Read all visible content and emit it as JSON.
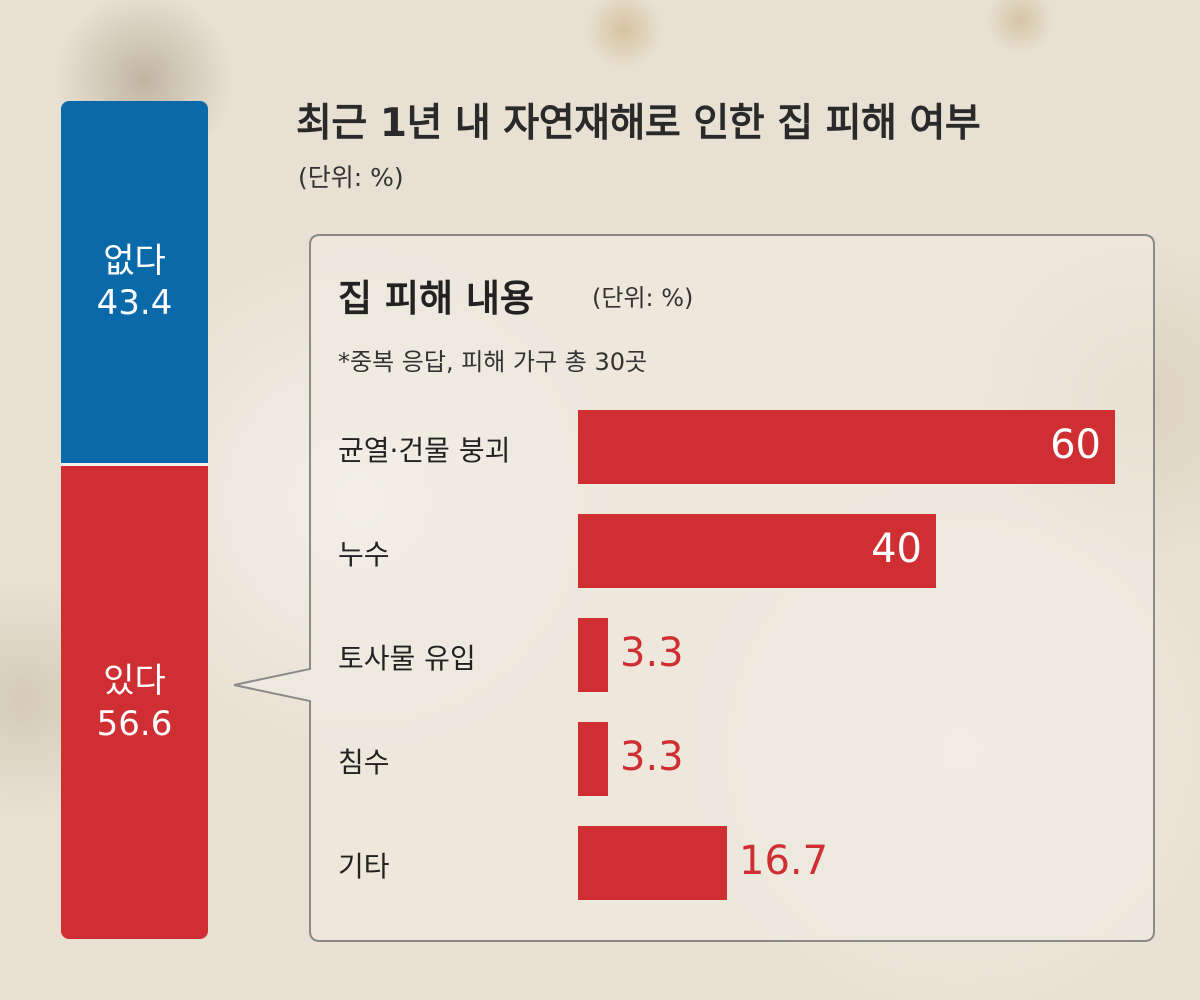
{
  "chart_data": [
    {
      "type": "bar",
      "orientation": "stacked-vertical",
      "title": "최근 1년 내 자연재해로 인한 집 피해 여부",
      "unit": "(단위: %)",
      "categories": [
        "없다",
        "있다"
      ],
      "values": [
        43.4,
        56.6
      ],
      "value_labels": [
        "43.4",
        "56.6"
      ],
      "colors": [
        "#0a6aa9",
        "#cf2e33"
      ]
    },
    {
      "type": "bar",
      "orientation": "horizontal",
      "title": "집 피해 내용",
      "unit": "(단위: %)",
      "note": "*중복 응답, 피해 가구 총 30곳",
      "categories": [
        "균열·건물 붕괴",
        "누수",
        "토사물 유입",
        "침수",
        "기타"
      ],
      "values": [
        60,
        40,
        3.3,
        3.3,
        16.7
      ],
      "value_labels": [
        "60",
        "40",
        "3.3",
        "3.3",
        "16.7"
      ],
      "xlim": [
        0,
        60
      ],
      "color": "#cf2e33"
    }
  ]
}
